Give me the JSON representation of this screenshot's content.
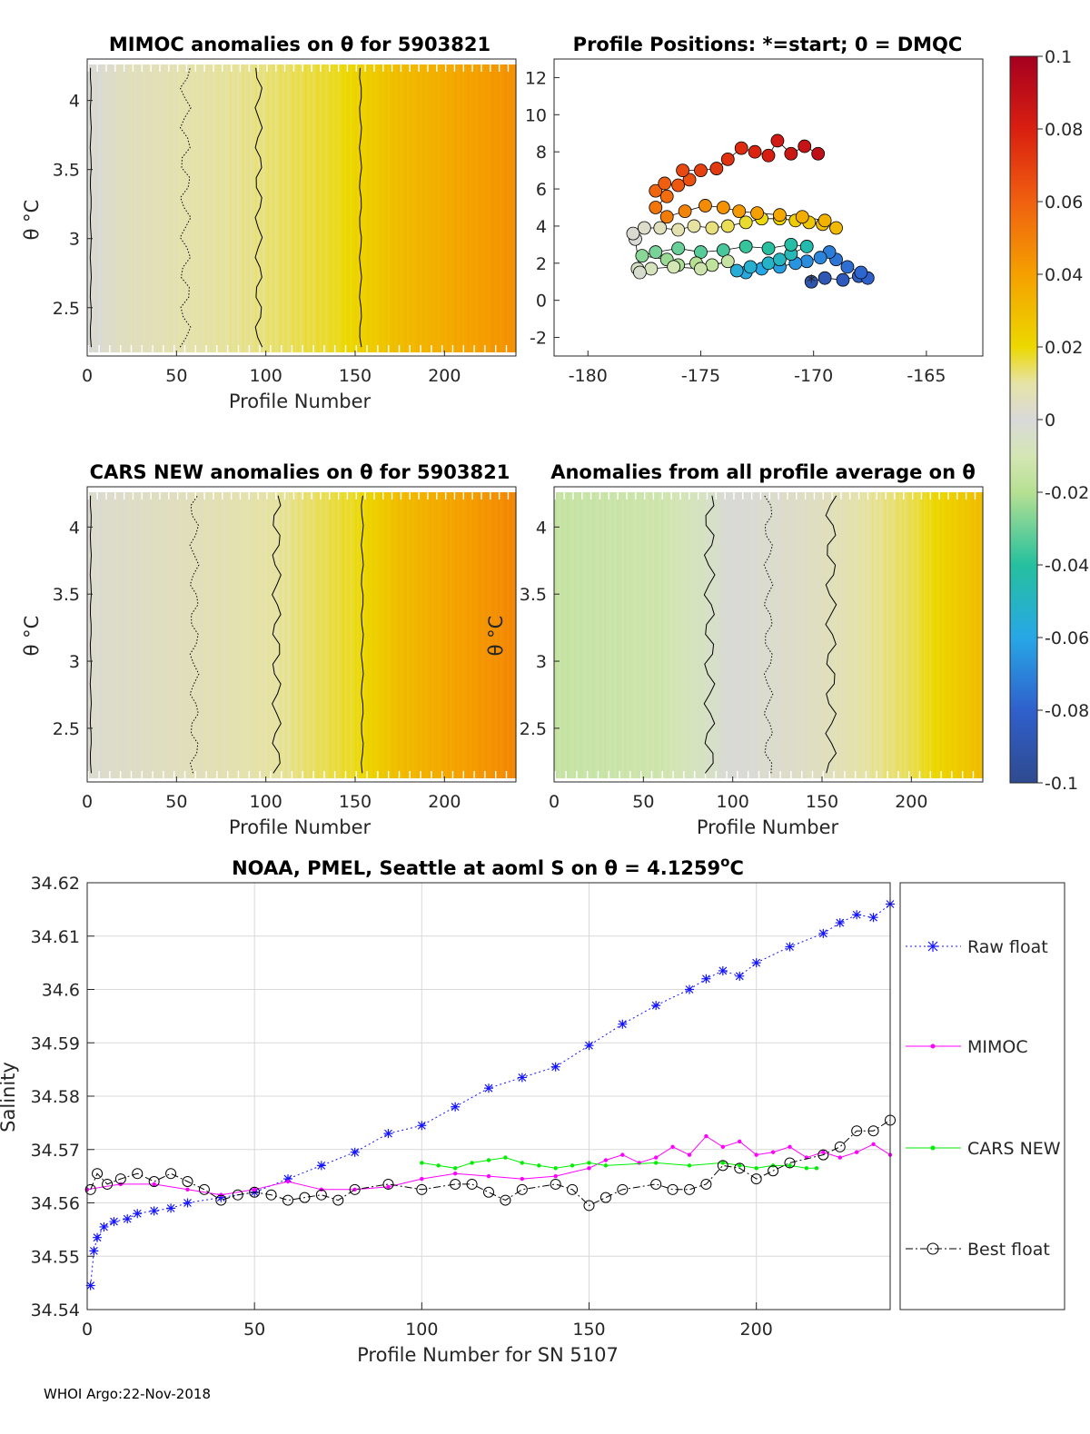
{
  "footer": "WHOI Argo:22-Nov-2018",
  "colors": {
    "raw": "#1414ff",
    "mimoc": "#ff00ff",
    "cars": "#00ee00",
    "best": "#000000",
    "grid": "#d9d9d9"
  },
  "chart_data": [
    {
      "id": "mimoc_anom",
      "type": "heatmap",
      "title": "MIMOC anomalies on θ  for 5903821",
      "xlabel": "Profile Number",
      "ylabel": "θ °C",
      "xlim": [
        0,
        240
      ],
      "ylim": [
        2.15,
        4.3
      ],
      "xticks": [
        "0",
        "50",
        "100",
        "150",
        "200"
      ],
      "yticks": [
        "2.5",
        "3",
        "3.5",
        "4"
      ],
      "anomaly_by_profile": [
        [
          0,
          0.0
        ],
        [
          20,
          0.005
        ],
        [
          50,
          0.008
        ],
        [
          95,
          0.012
        ],
        [
          140,
          0.018
        ],
        [
          175,
          0.03
        ],
        [
          240,
          0.045
        ]
      ]
    },
    {
      "id": "positions",
      "type": "scatter",
      "title": "Profile Positions: *=start; 0 = DMQC",
      "xlim": [
        -181.5,
        -162.5
      ],
      "ylim": [
        -3,
        13
      ],
      "xticks": [
        "-180",
        "-175",
        "-170",
        "-165"
      ],
      "yticks": [
        "-2",
        "0",
        "2",
        "4",
        "6",
        "8",
        "10",
        "12"
      ],
      "start": [
        -170.1,
        1.0
      ],
      "track": [
        [
          -170.1,
          1.0
        ],
        [
          -169.5,
          1.2
        ],
        [
          -168.7,
          1.1
        ],
        [
          -168.0,
          1.3
        ],
        [
          -167.6,
          1.2
        ],
        [
          -167.9,
          1.5
        ],
        [
          -168.5,
          1.8
        ],
        [
          -169.0,
          2.2
        ],
        [
          -169.3,
          2.6
        ],
        [
          -169.7,
          2.3
        ],
        [
          -170.3,
          2.1
        ],
        [
          -170.8,
          2.0
        ],
        [
          -171.5,
          1.8
        ],
        [
          -172.3,
          1.7
        ],
        [
          -173.0,
          1.5
        ],
        [
          -173.4,
          1.6
        ],
        [
          -172.8,
          1.8
        ],
        [
          -172.0,
          2.0
        ],
        [
          -171.5,
          2.2
        ],
        [
          -171.0,
          2.5
        ],
        [
          -170.3,
          2.9
        ],
        [
          -171.0,
          3.0
        ],
        [
          -172.0,
          2.8
        ],
        [
          -173.0,
          2.9
        ],
        [
          -174.0,
          2.7
        ],
        [
          -175.0,
          2.6
        ],
        [
          -176.0,
          2.8
        ],
        [
          -177.0,
          2.6
        ],
        [
          -177.6,
          2.4
        ],
        [
          -176.5,
          2.2
        ],
        [
          -176.0,
          1.9
        ],
        [
          -175.2,
          2.0
        ],
        [
          -174.5,
          1.9
        ],
        [
          -173.8,
          2.1
        ],
        [
          -175.0,
          1.7
        ],
        [
          -176.2,
          1.8
        ],
        [
          -177.2,
          1.7
        ],
        [
          -177.8,
          1.7
        ],
        [
          -177.7,
          1.5
        ],
        [
          -177.9,
          3.3
        ],
        [
          -178.0,
          3.6
        ],
        [
          -177.5,
          3.9
        ],
        [
          -176.8,
          3.9
        ],
        [
          -176.0,
          3.8
        ],
        [
          -175.3,
          4.0
        ],
        [
          -174.5,
          3.9
        ],
        [
          -173.8,
          4.0
        ],
        [
          -173.0,
          4.2
        ],
        [
          -172.3,
          4.4
        ],
        [
          -171.5,
          4.4
        ],
        [
          -170.8,
          4.3
        ],
        [
          -170.2,
          4.2
        ],
        [
          -169.6,
          4.1
        ],
        [
          -169.0,
          3.9
        ],
        [
          -169.5,
          4.3
        ],
        [
          -170.5,
          4.5
        ],
        [
          -171.5,
          4.6
        ],
        [
          -172.5,
          4.7
        ],
        [
          -173.3,
          4.8
        ],
        [
          -174.0,
          5.0
        ],
        [
          -174.8,
          5.1
        ],
        [
          -175.7,
          4.8
        ],
        [
          -176.5,
          4.5
        ],
        [
          -177.0,
          5.0
        ],
        [
          -176.5,
          5.6
        ],
        [
          -177.0,
          5.9
        ],
        [
          -176.6,
          6.3
        ],
        [
          -176.0,
          6.2
        ],
        [
          -175.5,
          6.5
        ],
        [
          -175.8,
          7.0
        ],
        [
          -175.0,
          7.0
        ],
        [
          -174.3,
          7.1
        ],
        [
          -173.8,
          7.6
        ],
        [
          -173.2,
          8.2
        ],
        [
          -172.6,
          8.0
        ],
        [
          -172.0,
          7.8
        ],
        [
          -171.6,
          8.6
        ],
        [
          -171.0,
          7.9
        ],
        [
          -170.4,
          8.3
        ],
        [
          -169.8,
          7.9
        ]
      ]
    },
    {
      "id": "cars_anom",
      "type": "heatmap",
      "title": "CARS NEW anomalies on θ for 5903821",
      "xlabel": "Profile Number",
      "ylabel": "θ °C",
      "xlim": [
        0,
        240
      ],
      "ylim": [
        2.1,
        4.3
      ],
      "xticks": [
        "0",
        "50",
        "100",
        "150",
        "200"
      ],
      "yticks": [
        "2.5",
        "3",
        "3.5",
        "4"
      ],
      "anomaly_by_profile": [
        [
          0,
          0.002
        ],
        [
          60,
          0.006
        ],
        [
          105,
          0.01
        ],
        [
          150,
          0.018
        ],
        [
          175,
          0.03
        ],
        [
          240,
          0.048
        ]
      ]
    },
    {
      "id": "avg_anom",
      "type": "heatmap",
      "title": "Anomalies from all profile average on θ",
      "xlabel": "Profile Number",
      "ylabel": "θ °C",
      "xlim": [
        0,
        240
      ],
      "ylim": [
        2.1,
        4.3
      ],
      "xticks": [
        "0",
        "50",
        "100",
        "150",
        "200"
      ],
      "yticks": [
        "2.5",
        "3",
        "3.5",
        "4"
      ],
      "anomaly_by_profile": [
        [
          0,
          -0.015
        ],
        [
          60,
          -0.012
        ],
        [
          85,
          -0.006
        ],
        [
          100,
          0.0
        ],
        [
          150,
          0.005
        ],
        [
          200,
          0.015
        ],
        [
          240,
          0.03
        ]
      ]
    },
    {
      "id": "colorbar",
      "type": "colorbar",
      "range": [
        -0.1,
        0.1
      ],
      "ticks": [
        "0.1",
        "0.08",
        "0.06",
        "0.04",
        "0.02",
        "0",
        "-0.02",
        "-0.04",
        "-0.06",
        "-0.08",
        "-0.1"
      ]
    },
    {
      "id": "salinity",
      "type": "line",
      "title": "NOAA, PMEL, Seattle at aoml S on θ = 4.1259",
      "title_sup": "o",
      "title_unit": "C",
      "xlabel": "Profile Number for SN 5107",
      "ylabel": "Salinity",
      "xlim": [
        0,
        240
      ],
      "ylim": [
        34.54,
        34.62
      ],
      "xticks": [
        "0",
        "50",
        "100",
        "150",
        "200"
      ],
      "yticks": [
        "34.54",
        "34.55",
        "34.56",
        "34.57",
        "34.58",
        "34.59",
        "34.6",
        "34.61",
        "34.62"
      ],
      "series": [
        {
          "name": "Raw float",
          "style": "dotted-star",
          "points": [
            [
              1,
              34.5445
            ],
            [
              2,
              34.551
            ],
            [
              3,
              34.5535
            ],
            [
              5,
              34.5555
            ],
            [
              8,
              34.5565
            ],
            [
              12,
              34.557
            ],
            [
              15,
              34.558
            ],
            [
              20,
              34.5585
            ],
            [
              25,
              34.559
            ],
            [
              30,
              34.56
            ],
            [
              40,
              34.561
            ],
            [
              50,
              34.562
            ],
            [
              60,
              34.5645
            ],
            [
              70,
              34.567
            ],
            [
              80,
              34.5695
            ],
            [
              90,
              34.573
            ],
            [
              100,
              34.5745
            ],
            [
              110,
              34.578
            ],
            [
              120,
              34.5815
            ],
            [
              130,
              34.5835
            ],
            [
              140,
              34.5855
            ],
            [
              150,
              34.5895
            ],
            [
              160,
              34.5935
            ],
            [
              170,
              34.597
            ],
            [
              180,
              34.6
            ],
            [
              185,
              34.602
            ],
            [
              190,
              34.6035
            ],
            [
              195,
              34.6025
            ],
            [
              200,
              34.605
            ],
            [
              210,
              34.608
            ],
            [
              220,
              34.6105
            ],
            [
              225,
              34.6125
            ],
            [
              230,
              34.614
            ],
            [
              235,
              34.6135
            ],
            [
              240,
              34.616
            ]
          ]
        },
        {
          "name": "MIMOC",
          "style": "solid-dot",
          "points": [
            [
              0,
              34.5625
            ],
            [
              10,
              34.5635
            ],
            [
              20,
              34.5635
            ],
            [
              30,
              34.5625
            ],
            [
              40,
              34.5615
            ],
            [
              50,
              34.5625
            ],
            [
              60,
              34.564
            ],
            [
              70,
              34.5625
            ],
            [
              80,
              34.5625
            ],
            [
              90,
              34.563
            ],
            [
              100,
              34.5645
            ],
            [
              110,
              34.5655
            ],
            [
              120,
              34.565
            ],
            [
              130,
              34.5645
            ],
            [
              140,
              34.565
            ],
            [
              150,
              34.5665
            ],
            [
              155,
              34.568
            ],
            [
              160,
              34.569
            ],
            [
              165,
              34.5675
            ],
            [
              170,
              34.5685
            ],
            [
              175,
              34.5705
            ],
            [
              180,
              34.569
            ],
            [
              185,
              34.5725
            ],
            [
              190,
              34.5705
            ],
            [
              195,
              34.5715
            ],
            [
              200,
              34.569
            ],
            [
              205,
              34.5695
            ],
            [
              210,
              34.5705
            ],
            [
              215,
              34.5685
            ],
            [
              220,
              34.5695
            ],
            [
              225,
              34.5685
            ],
            [
              230,
              34.5695
            ],
            [
              235,
              34.571
            ],
            [
              240,
              34.569
            ]
          ]
        },
        {
          "name": "CARS NEW",
          "style": "solid-dot",
          "points": [
            [
              100,
              34.5675
            ],
            [
              105,
              34.567
            ],
            [
              110,
              34.5665
            ],
            [
              115,
              34.5675
            ],
            [
              120,
              34.568
            ],
            [
              125,
              34.5685
            ],
            [
              130,
              34.5675
            ],
            [
              135,
              34.567
            ],
            [
              140,
              34.5665
            ],
            [
              145,
              34.567
            ],
            [
              150,
              34.5675
            ],
            [
              155,
              34.567
            ],
            [
              170,
              34.5675
            ],
            [
              180,
              34.567
            ],
            [
              190,
              34.5675
            ],
            [
              195,
              34.567
            ],
            [
              200,
              34.5665
            ],
            [
              205,
              34.567
            ],
            [
              210,
              34.567
            ],
            [
              215,
              34.5665
            ],
            [
              218,
              34.5665
            ]
          ]
        },
        {
          "name": "Best float",
          "style": "dashdot-circle",
          "points": [
            [
              1,
              34.5625
            ],
            [
              3,
              34.5655
            ],
            [
              6,
              34.5635
            ],
            [
              10,
              34.5645
            ],
            [
              15,
              34.5655
            ],
            [
              20,
              34.564
            ],
            [
              25,
              34.5655
            ],
            [
              30,
              34.564
            ],
            [
              35,
              34.5625
            ],
            [
              40,
              34.5605
            ],
            [
              45,
              34.5615
            ],
            [
              50,
              34.562
            ],
            [
              55,
              34.5615
            ],
            [
              60,
              34.5605
            ],
            [
              65,
              34.561
            ],
            [
              70,
              34.5615
            ],
            [
              75,
              34.5605
            ],
            [
              80,
              34.5625
            ],
            [
              90,
              34.5635
            ],
            [
              100,
              34.5625
            ],
            [
              110,
              34.5635
            ],
            [
              115,
              34.5635
            ],
            [
              120,
              34.562
            ],
            [
              125,
              34.5605
            ],
            [
              130,
              34.5625
            ],
            [
              140,
              34.5635
            ],
            [
              145,
              34.5625
            ],
            [
              150,
              34.5595
            ],
            [
              155,
              34.561
            ],
            [
              160,
              34.5625
            ],
            [
              170,
              34.5635
            ],
            [
              175,
              34.5625
            ],
            [
              180,
              34.5625
            ],
            [
              185,
              34.5635
            ],
            [
              190,
              34.567
            ],
            [
              195,
              34.5665
            ],
            [
              200,
              34.5645
            ],
            [
              205,
              34.566
            ],
            [
              210,
              34.5675
            ],
            [
              220,
              34.569
            ],
            [
              225,
              34.5705
            ],
            [
              230,
              34.5735
            ],
            [
              235,
              34.5735
            ],
            [
              240,
              34.5755
            ]
          ]
        }
      ]
    }
  ]
}
